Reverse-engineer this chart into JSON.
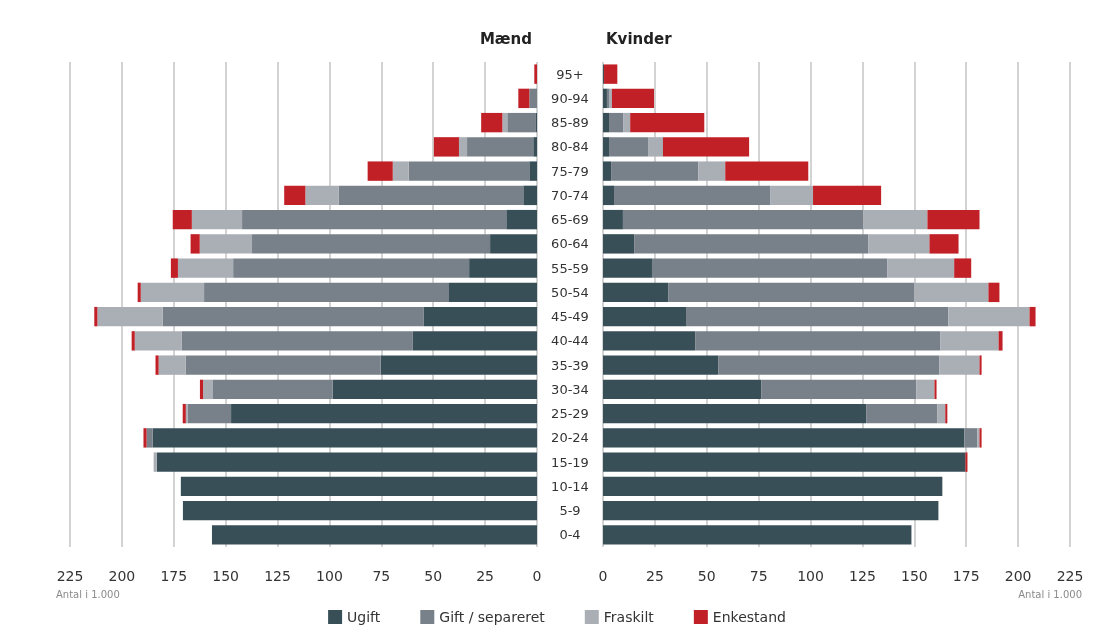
{
  "chart_data": [
    {
      "type": "bar",
      "title": "Mænd",
      "orientation": "horizontal",
      "stacked": true,
      "grid": "x",
      "legend": "bottom",
      "categories": [
        "95+",
        "90-94",
        "85-89",
        "80-84",
        "75-79",
        "70-74",
        "65-69",
        "60-64",
        "55-59",
        "50-54",
        "45-49",
        "40-44",
        "35-39",
        "30-34",
        "25-29",
        "20-24",
        "15-19",
        "10-14",
        "5-9",
        "0-4"
      ],
      "xlim": [
        225,
        0
      ],
      "xticks": [
        225,
        200,
        175,
        150,
        125,
        100,
        75,
        50,
        25,
        0
      ],
      "annotations": [
        "Antal i 1.000"
      ],
      "series": [
        {
          "name": "Ugift",
          "color": "#384f57",
          "values": [
            0,
            0,
            0.8,
            1.8,
            3.7,
            6.6,
            14.8,
            22.6,
            32.7,
            42.4,
            54.5,
            59.8,
            75.3,
            98.5,
            147.4,
            185.2,
            183.2,
            171.6,
            170.6,
            156.6
          ]
        },
        {
          "name": "Gift / separeret",
          "color": "#78818a",
          "values": [
            0,
            3.7,
            13.5,
            31.9,
            58.1,
            89,
            127.3,
            114.7,
            113.7,
            118,
            125.8,
            111.3,
            93.9,
            57.6,
            20.8,
            2.9,
            0,
            0,
            0,
            0
          ]
        },
        {
          "name": "Fraskilt",
          "color": "#aaaeb5",
          "values": [
            0,
            0,
            2.4,
            3.9,
            7.7,
            16,
            24.2,
            25.2,
            26.6,
            30.5,
            31.5,
            22.7,
            13.1,
            4.8,
            1,
            0,
            1.5,
            0,
            0,
            0
          ]
        },
        {
          "name": "Enkestand",
          "color": "#c02026",
          "values": [
            1.3,
            5.3,
            10.2,
            12.1,
            12.1,
            10.2,
            9.2,
            4.4,
            3.4,
            1.5,
            1.5,
            1.5,
            1.5,
            1.5,
            1.5,
            1.5,
            0,
            0,
            0,
            0
          ]
        }
      ]
    },
    {
      "type": "bar",
      "title": "Kvinder",
      "orientation": "horizontal",
      "stacked": true,
      "grid": "x",
      "tick_labels": "x",
      "categories": [
        null,
        null,
        null,
        null,
        null,
        null,
        null,
        null,
        null,
        null,
        null,
        null,
        null,
        null,
        null,
        null,
        null,
        null,
        null,
        null
      ],
      "xlim": [
        0,
        225
      ],
      "xticks": [
        0,
        25,
        50,
        75,
        100,
        125,
        150,
        175,
        200,
        225
      ],
      "annotations": [
        "Antal i 1.000"
      ],
      "series": [
        {
          "color": "#384f57",
          "values": [
            0.5,
            1.9,
            2.9,
            2.9,
            3.9,
            5.3,
            9.6,
            15,
            23.6,
            31.4,
            40,
            44.4,
            55.5,
            76.2,
            126.8,
            174.1,
            174.6,
            163.5,
            161.6,
            148.6
          ]
        },
        {
          "color": "#78818a",
          "values": [
            0,
            1,
            6.8,
            18.8,
            42,
            75.2,
            115.8,
            112.9,
            113.3,
            118.6,
            126.4,
            118.2,
            106.6,
            74.8,
            34.2,
            6.3,
            0,
            0,
            0,
            0
          ]
        },
        {
          "color": "#aaaeb5",
          "values": [
            0,
            1.4,
            3.4,
            7.2,
            13,
            20.7,
            30.9,
            29.4,
            32.3,
            35.7,
            39.1,
            28,
            19.3,
            8.7,
            3.9,
            1,
            0,
            0,
            0,
            0
          ]
        },
        {
          "color": "#c02026",
          "values": [
            6.4,
            20.3,
            35.7,
            41.5,
            40,
            32.8,
            25.1,
            14,
            8.2,
            5.3,
            2.9,
            1.9,
            1,
            1,
            1,
            1,
            1,
            0,
            0,
            0
          ]
        }
      ]
    }
  ]
}
